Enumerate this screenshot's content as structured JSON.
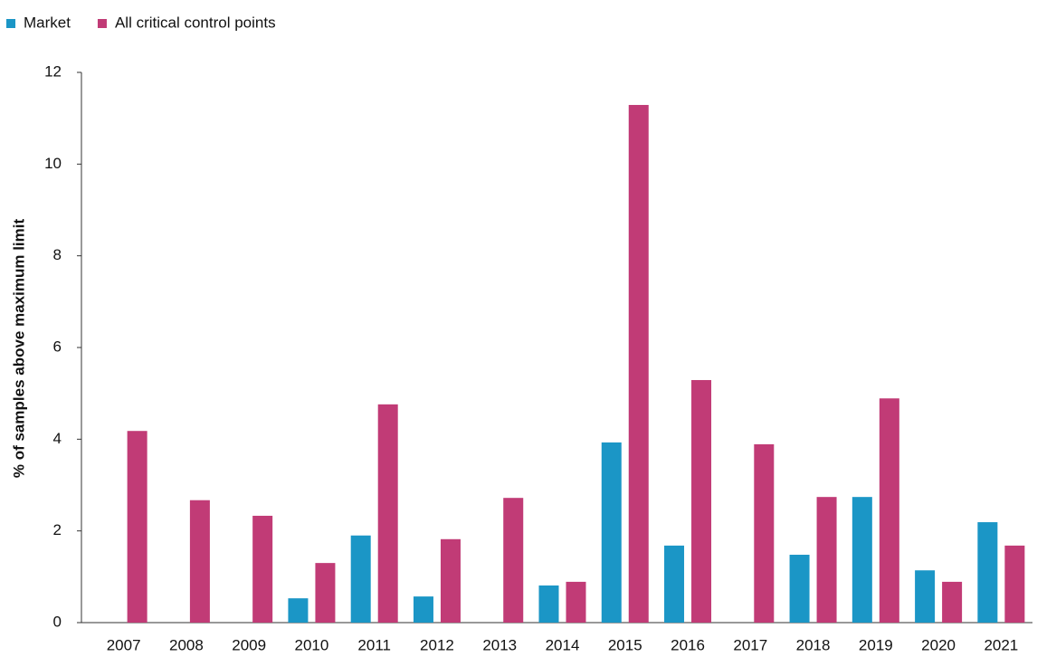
{
  "chart_data": {
    "type": "bar",
    "y_label": "% of samples above maximum limit",
    "categories": [
      "2007",
      "2008",
      "2009",
      "2010",
      "2011",
      "2012",
      "2013",
      "2014",
      "2015",
      "2016",
      "2017",
      "2018",
      "2019",
      "2020",
      "2021"
    ],
    "series": [
      {
        "name": "Market",
        "color": "#1b96c6",
        "values": [
          null,
          null,
          null,
          0.53,
          1.9,
          0.57,
          null,
          0.81,
          3.93,
          1.68,
          null,
          1.48,
          2.74,
          1.14,
          2.19
        ]
      },
      {
        "name": "All critical control points",
        "color": "#c13b76",
        "values": [
          4.18,
          2.67,
          2.33,
          1.3,
          4.76,
          1.82,
          2.72,
          0.89,
          11.29,
          5.29,
          3.89,
          2.74,
          4.89,
          0.89,
          1.68
        ]
      }
    ],
    "ylim": [
      0,
      12
    ],
    "yticks": [
      0,
      2,
      4,
      6,
      8,
      10,
      12
    ],
    "grid": false,
    "legend": "top-left"
  }
}
